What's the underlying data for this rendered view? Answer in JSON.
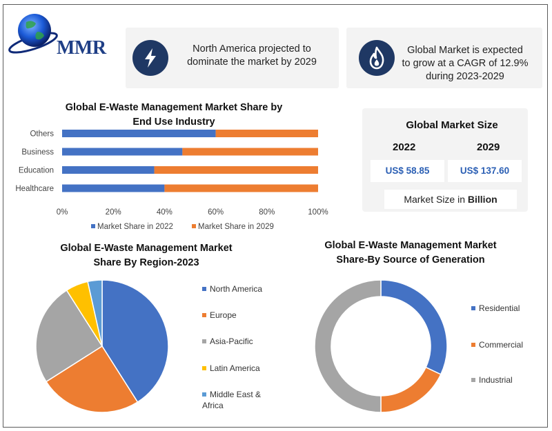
{
  "logo": {
    "text": "MMR"
  },
  "info_cards": [
    {
      "icon": "lightning-bolt-icon",
      "text": "North America projected to\ndominate the market by 2029"
    },
    {
      "icon": "flame-icon",
      "text": "Global Market is expected\nto grow at a CAGR of 12.9%\nduring 2023-2029"
    }
  ],
  "market_size": {
    "title": "Global Market Size",
    "year_1": "2022",
    "year_2": "2029",
    "value_1": "US$ 58.85",
    "value_2": "US$ 137.60",
    "unit_prefix": "Market Size in ",
    "unit_bold": "Billion"
  },
  "colors": {
    "blue": "#4472c4",
    "orange": "#ed7d31",
    "gray": "#a5a5a5",
    "yellow": "#ffc000",
    "lightblue": "#5b9bd5",
    "navy": "#1f3864"
  },
  "chart_data": [
    {
      "type": "bar",
      "orientation": "horizontal",
      "stacked": true,
      "title_line1": "Global E-Waste Management Market Share by",
      "title_line2": "End Use Industry",
      "categories": [
        "Healthcare",
        "Education",
        "Business",
        "Others"
      ],
      "series": [
        {
          "name": "Market Share in 2022",
          "color": "#4472c4",
          "values": [
            40,
            36,
            47,
            60
          ]
        },
        {
          "name": "Market Share in 2029",
          "color": "#ed7d31",
          "values": [
            60,
            64,
            53,
            40
          ]
        }
      ],
      "x_ticks": [
        "0%",
        "20%",
        "40%",
        "60%",
        "80%",
        "100%"
      ],
      "xlim": [
        0,
        100
      ],
      "legend": "bottom"
    },
    {
      "type": "pie",
      "title_line1": "Global E-Waste Management Market",
      "title_line2": "Share By Region-2023",
      "labels": [
        "North America",
        "Europe",
        "Asia-Pacific",
        "Latin America",
        "Middle East &\nAfrica"
      ],
      "values": [
        41,
        25,
        25,
        5.5,
        3.5
      ],
      "colors": [
        "#4472c4",
        "#ed7d31",
        "#a5a5a5",
        "#ffc000",
        "#5b9bd5"
      ],
      "legend": "right"
    },
    {
      "type": "pie",
      "variant": "donut",
      "title_line1": "Global E-Waste Management Market",
      "title_line2": "Share-By Source of Generation",
      "labels": [
        "Residential",
        "Commercial",
        "Industrial"
      ],
      "values": [
        32,
        18,
        50
      ],
      "colors": [
        "#4472c4",
        "#ed7d31",
        "#a5a5a5"
      ],
      "legend": "right"
    }
  ]
}
